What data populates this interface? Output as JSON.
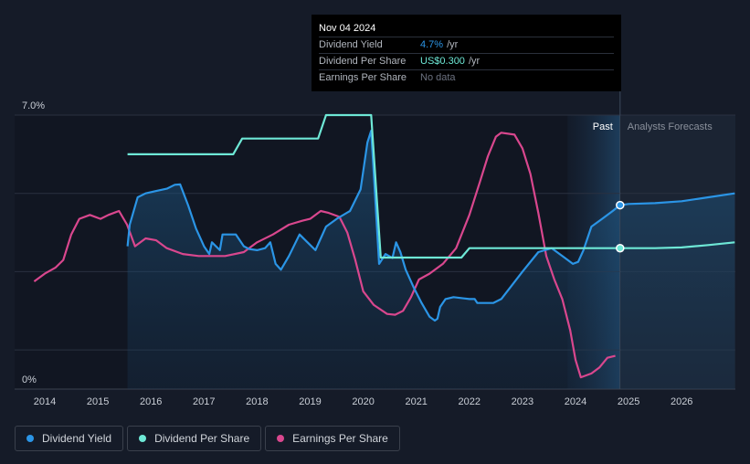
{
  "chart_data": {
    "type": "line",
    "x_range": [
      2013.8,
      2027.0
    ],
    "ylim": [
      0,
      7.0
    ],
    "y_ticks": [
      {
        "value": 7.0,
        "label": "7.0%"
      },
      {
        "value": 0,
        "label": "0%"
      }
    ],
    "x_ticks": [
      "2014",
      "2015",
      "2016",
      "2017",
      "2018",
      "2019",
      "2020",
      "2021",
      "2022",
      "2023",
      "2024",
      "2025",
      "2026"
    ],
    "regions": {
      "past_label": "Past",
      "forecast_label": "Analysts Forecasts",
      "divider_x": 2024.84,
      "forecast_band_start": 2023.85
    },
    "series": [
      {
        "name": "Dividend Yield",
        "color": "#2b95e6",
        "fill": true,
        "marker_at": 2024.84,
        "points": [
          [
            2015.56,
            3.65
          ],
          [
            2015.6,
            4.2
          ],
          [
            2015.75,
            4.9
          ],
          [
            2015.9,
            5.0
          ],
          [
            2016.1,
            5.06
          ],
          [
            2016.3,
            5.12
          ],
          [
            2016.45,
            5.22
          ],
          [
            2016.55,
            5.23
          ],
          [
            2016.7,
            4.7
          ],
          [
            2016.85,
            4.1
          ],
          [
            2017.0,
            3.65
          ],
          [
            2017.1,
            3.45
          ],
          [
            2017.15,
            3.75
          ],
          [
            2017.3,
            3.55
          ],
          [
            2017.35,
            3.95
          ],
          [
            2017.6,
            3.95
          ],
          [
            2017.75,
            3.65
          ],
          [
            2017.85,
            3.58
          ],
          [
            2018.0,
            3.55
          ],
          [
            2018.15,
            3.6
          ],
          [
            2018.25,
            3.75
          ],
          [
            2018.35,
            3.2
          ],
          [
            2018.45,
            3.05
          ],
          [
            2018.6,
            3.4
          ],
          [
            2018.8,
            3.95
          ],
          [
            2018.95,
            3.75
          ],
          [
            2019.1,
            3.55
          ],
          [
            2019.2,
            3.85
          ],
          [
            2019.3,
            4.15
          ],
          [
            2019.5,
            4.35
          ],
          [
            2019.75,
            4.55
          ],
          [
            2019.95,
            5.1
          ],
          [
            2020.08,
            6.3
          ],
          [
            2020.15,
            6.6
          ],
          [
            2020.2,
            5.5
          ],
          [
            2020.3,
            3.2
          ],
          [
            2020.42,
            3.45
          ],
          [
            2020.55,
            3.35
          ],
          [
            2020.62,
            3.75
          ],
          [
            2020.7,
            3.5
          ],
          [
            2020.8,
            3.05
          ],
          [
            2020.95,
            2.6
          ],
          [
            2021.1,
            2.2
          ],
          [
            2021.25,
            1.85
          ],
          [
            2021.35,
            1.75
          ],
          [
            2021.4,
            1.8
          ],
          [
            2021.45,
            2.1
          ],
          [
            2021.55,
            2.3
          ],
          [
            2021.7,
            2.35
          ],
          [
            2022.0,
            2.3
          ],
          [
            2022.1,
            2.3
          ],
          [
            2022.15,
            2.2
          ],
          [
            2022.3,
            2.2
          ],
          [
            2022.45,
            2.2
          ],
          [
            2022.6,
            2.3
          ],
          [
            2022.8,
            2.65
          ],
          [
            2023.0,
            3.0
          ],
          [
            2023.3,
            3.5
          ],
          [
            2023.55,
            3.6
          ],
          [
            2023.8,
            3.35
          ],
          [
            2023.95,
            3.2
          ],
          [
            2024.05,
            3.25
          ],
          [
            2024.15,
            3.55
          ],
          [
            2024.3,
            4.15
          ],
          [
            2024.5,
            4.35
          ],
          [
            2024.7,
            4.55
          ],
          [
            2024.84,
            4.7
          ],
          [
            2025.0,
            4.73
          ],
          [
            2025.5,
            4.75
          ],
          [
            2026.0,
            4.8
          ],
          [
            2026.5,
            4.9
          ],
          [
            2027.0,
            5.0
          ]
        ]
      },
      {
        "name": "Dividend Per Share",
        "color": "#6ee8d6",
        "fill": false,
        "marker_at": 2024.84,
        "points": [
          [
            2015.56,
            6.0
          ],
          [
            2017.55,
            6.0
          ],
          [
            2017.72,
            6.4
          ],
          [
            2019.15,
            6.4
          ],
          [
            2019.3,
            7.0
          ],
          [
            2020.15,
            7.0
          ],
          [
            2020.33,
            3.36
          ],
          [
            2021.85,
            3.36
          ],
          [
            2022.0,
            3.6
          ],
          [
            2024.84,
            3.6
          ],
          [
            2025.5,
            3.6
          ],
          [
            2026.0,
            3.62
          ],
          [
            2026.5,
            3.68
          ],
          [
            2027.0,
            3.75
          ]
        ]
      },
      {
        "name": "Earnings Per Share",
        "color": "#d9478e",
        "fill": false,
        "points": [
          [
            2013.8,
            2.75
          ],
          [
            2014.0,
            2.95
          ],
          [
            2014.2,
            3.1
          ],
          [
            2014.35,
            3.3
          ],
          [
            2014.5,
            3.95
          ],
          [
            2014.65,
            4.35
          ],
          [
            2014.85,
            4.45
          ],
          [
            2015.05,
            4.35
          ],
          [
            2015.2,
            4.45
          ],
          [
            2015.4,
            4.55
          ],
          [
            2015.55,
            4.2
          ],
          [
            2015.7,
            3.65
          ],
          [
            2015.9,
            3.85
          ],
          [
            2016.1,
            3.8
          ],
          [
            2016.3,
            3.6
          ],
          [
            2016.6,
            3.45
          ],
          [
            2016.9,
            3.4
          ],
          [
            2017.4,
            3.4
          ],
          [
            2017.75,
            3.5
          ],
          [
            2018.0,
            3.75
          ],
          [
            2018.3,
            3.95
          ],
          [
            2018.6,
            4.2
          ],
          [
            2018.85,
            4.3
          ],
          [
            2019.0,
            4.35
          ],
          [
            2019.2,
            4.55
          ],
          [
            2019.35,
            4.5
          ],
          [
            2019.55,
            4.4
          ],
          [
            2019.7,
            4.0
          ],
          [
            2019.85,
            3.3
          ],
          [
            2020.0,
            2.5
          ],
          [
            2020.2,
            2.15
          ],
          [
            2020.45,
            1.92
          ],
          [
            2020.6,
            1.9
          ],
          [
            2020.75,
            2.0
          ],
          [
            2020.9,
            2.35
          ],
          [
            2021.05,
            2.8
          ],
          [
            2021.25,
            2.95
          ],
          [
            2021.5,
            3.2
          ],
          [
            2021.75,
            3.6
          ],
          [
            2022.0,
            4.45
          ],
          [
            2022.2,
            5.3
          ],
          [
            2022.35,
            5.95
          ],
          [
            2022.5,
            6.45
          ],
          [
            2022.6,
            6.55
          ],
          [
            2022.85,
            6.5
          ],
          [
            2023.0,
            6.15
          ],
          [
            2023.15,
            5.5
          ],
          [
            2023.3,
            4.5
          ],
          [
            2023.45,
            3.4
          ],
          [
            2023.6,
            2.8
          ],
          [
            2023.75,
            2.3
          ],
          [
            2023.9,
            1.5
          ],
          [
            2024.0,
            0.75
          ],
          [
            2024.1,
            0.3
          ],
          [
            2024.3,
            0.4
          ],
          [
            2024.45,
            0.55
          ],
          [
            2024.6,
            0.8
          ],
          [
            2024.75,
            0.85
          ]
        ]
      }
    ]
  },
  "tooltip": {
    "date": "Nov 04 2024",
    "rows": [
      {
        "label": "Dividend Yield",
        "value": "4.7%",
        "unit": "/yr",
        "color": "#2b95e6"
      },
      {
        "label": "Dividend Per Share",
        "value": "US$0.300",
        "unit": "/yr",
        "color": "#6ee8d6"
      },
      {
        "label": "Earnings Per Share",
        "nodata": "No data"
      }
    ]
  },
  "legend": [
    {
      "label": "Dividend Yield",
      "color": "#2b95e6"
    },
    {
      "label": "Dividend Per Share",
      "color": "#6ee8d6"
    },
    {
      "label": "Earnings Per Share",
      "color": "#d9478e"
    }
  ]
}
